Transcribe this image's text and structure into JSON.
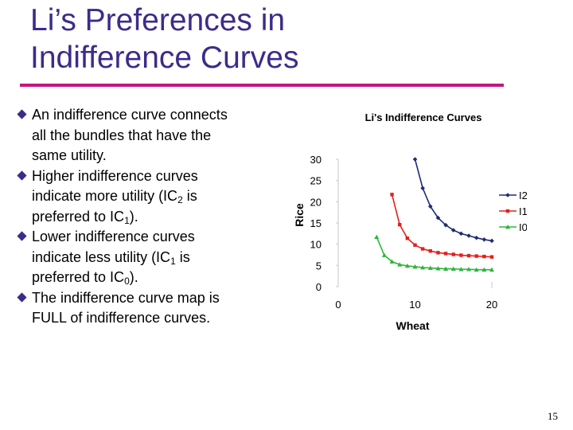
{
  "slide": {
    "title_line1": "Li’s Preferences in",
    "title_line2": "Indifference Curves",
    "page_number": "15"
  },
  "bullets": [
    {
      "lines": [
        "An indifference curve connects",
        "all the bundles that have the",
        "same utility."
      ]
    },
    {
      "lines": [
        [
          "indicate more utility (IC",
          {
            "sub": "2"
          },
          " is"
        ],
        "Higher indifference curves",
        [
          "preferred to IC",
          {
            "sub": "1"
          },
          ")."
        ]
      ]
    },
    {
      "lines": [
        "Lower indifference curves",
        [
          "indicate less utility (IC",
          {
            "sub": "1"
          },
          " is"
        ],
        [
          "preferred to IC",
          {
            "sub": "0"
          },
          ")."
        ]
      ]
    },
    {
      "lines": [
        "The indifference curve map is",
        "FULL of indifference curves."
      ]
    }
  ],
  "chart_data": {
    "type": "line",
    "title": "Li's Indifference Curves",
    "xlabel": "Wheat",
    "ylabel": "Rice",
    "xlim": [
      0,
      20
    ],
    "ylim": [
      0,
      30
    ],
    "xticks": [
      0,
      10,
      20
    ],
    "yticks": [
      0,
      5,
      10,
      15,
      20,
      25,
      30
    ],
    "grid": false,
    "legend_position": "right",
    "series": [
      {
        "name": "I2",
        "color": "#1f2a78",
        "marker": "diamond",
        "x": [
          10,
          11,
          12,
          13,
          14,
          15,
          16,
          17,
          18,
          19,
          20
        ],
        "y": [
          30,
          23.2,
          18.9,
          16.2,
          14.5,
          13.3,
          12.5,
          12.0,
          11.5,
          11.1,
          10.8
        ]
      },
      {
        "name": "I1",
        "color": "#e3201b",
        "marker": "square",
        "x": [
          7,
          8,
          9,
          10,
          11,
          12,
          13,
          14,
          15,
          16,
          17,
          18,
          19,
          20
        ],
        "y": [
          21.7,
          14.6,
          11.4,
          9.8,
          8.9,
          8.4,
          8.0,
          7.8,
          7.6,
          7.4,
          7.3,
          7.2,
          7.1,
          7.0
        ]
      },
      {
        "name": "I0",
        "color": "#2fb53a",
        "marker": "triangle",
        "x": [
          5,
          6,
          7,
          8,
          9,
          10,
          11,
          12,
          13,
          14,
          15,
          16,
          17,
          18,
          19,
          20
        ],
        "y": [
          11.7,
          7.4,
          5.9,
          5.2,
          4.9,
          4.7,
          4.5,
          4.4,
          4.3,
          4.2,
          4.2,
          4.1,
          4.1,
          4.0,
          4.0,
          4.0
        ]
      }
    ]
  }
}
